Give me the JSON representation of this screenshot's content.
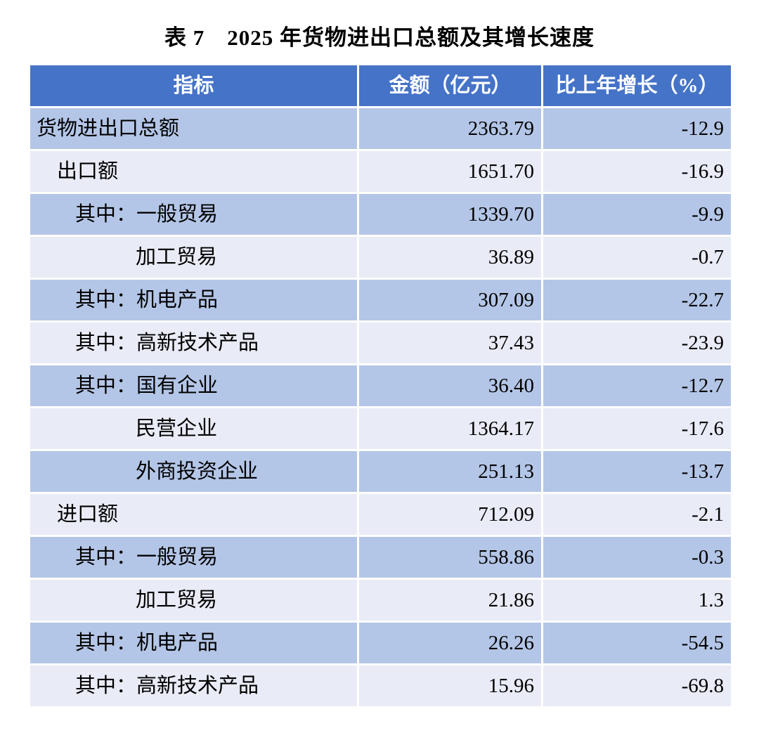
{
  "title": "表 7　2025 年货物进出口总额及其增长速度",
  "table": {
    "columns": [
      "指标",
      "金额（亿元）",
      "比上年增长（%）"
    ],
    "rows": [
      {
        "indicator": "货物进出口总额",
        "amount": "2363.79",
        "growth": "-12.9",
        "indent": 0
      },
      {
        "indicator": "出口额",
        "amount": "1651.70",
        "growth": "-16.9",
        "indent": 1
      },
      {
        "indicator": "其中：一般贸易",
        "amount": "1339.70",
        "growth": "-9.9",
        "indent": 2
      },
      {
        "indicator": "加工贸易",
        "amount": "36.89",
        "growth": "-0.7",
        "indent": 3
      },
      {
        "indicator": "其中：机电产品",
        "amount": "307.09",
        "growth": "-22.7",
        "indent": 2
      },
      {
        "indicator": "其中：高新技术产品",
        "amount": "37.43",
        "growth": "-23.9",
        "indent": 2
      },
      {
        "indicator": "其中：国有企业",
        "amount": "36.40",
        "growth": "-12.7",
        "indent": 2
      },
      {
        "indicator": "民营企业",
        "amount": "1364.17",
        "growth": "-17.6",
        "indent": 3
      },
      {
        "indicator": "外商投资企业",
        "amount": "251.13",
        "growth": "-13.7",
        "indent": 3
      },
      {
        "indicator": "进口额",
        "amount": "712.09",
        "growth": "-2.1",
        "indent": 1
      },
      {
        "indicator": "其中：一般贸易",
        "amount": "558.86",
        "growth": "-0.3",
        "indent": 2
      },
      {
        "indicator": "加工贸易",
        "amount": "21.86",
        "growth": "1.3",
        "indent": 3
      },
      {
        "indicator": "其中：机电产品",
        "amount": "26.26",
        "growth": "-54.5",
        "indent": 2
      },
      {
        "indicator": "其中：高新技术产品",
        "amount": "15.96",
        "growth": "-69.8",
        "indent": 2
      }
    ]
  },
  "colors": {
    "header_bg": "#4573c7",
    "header_text": "#ffffff",
    "row_dark": "#b4c6e7",
    "row_light": "#e9ebf6",
    "body_text": "#000000"
  }
}
